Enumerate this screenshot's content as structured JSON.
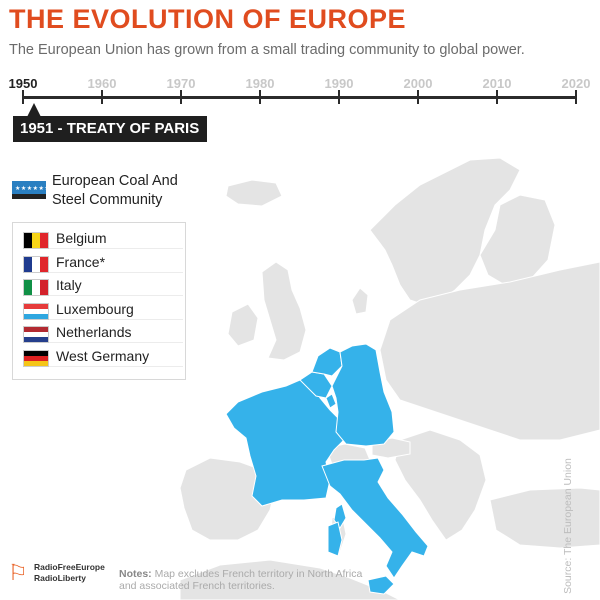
{
  "header": {
    "title": "THE EVOLUTION OF EUROPE",
    "title_color": "#e04c1f",
    "subtitle": "The European Union has grown from a small trading community to global power."
  },
  "timeline": {
    "labels": [
      "1950",
      "1960",
      "1970",
      "1980",
      "1990",
      "2000",
      "2010",
      "2020"
    ],
    "active": "1950",
    "event_year": "1951",
    "event_text": "1951 - TREATY OF PARIS"
  },
  "legend": {
    "group": "European Coal And Steel Community",
    "group_line1": "European Coal And",
    "group_line2": "Steel Community",
    "members": [
      {
        "name": "Belgium",
        "flag": [
          "#000000",
          "#f7d417",
          "#e0262b"
        ],
        "dir": "v"
      },
      {
        "name": "France*",
        "flag": [
          "#1f3b8f",
          "#ffffff",
          "#e0262b"
        ],
        "dir": "v"
      },
      {
        "name": "Italy",
        "flag": [
          "#109046",
          "#ffffff",
          "#d3222b"
        ],
        "dir": "v"
      },
      {
        "name": "Luxembourg",
        "flag": [
          "#e63b3b",
          "#ffffff",
          "#2fa7e0"
        ],
        "dir": "h"
      },
      {
        "name": "Netherlands",
        "flag": [
          "#b22a32",
          "#ffffff",
          "#253f8c"
        ],
        "dir": "h"
      },
      {
        "name": "West Germany",
        "flag": [
          "#000000",
          "#dd2020",
          "#f5c518"
        ],
        "dir": "h"
      }
    ]
  },
  "map": {
    "highlight_color": "#35b2ea",
    "land_color": "#e4e4e4",
    "border_color": "#ffffff"
  },
  "footer": {
    "logo_line1": "RadioFreeEurope",
    "logo_line2": "RadioLiberty",
    "notes_label": "Notes:",
    "notes_text": "Map excludes French territory in North Africa and associated French territories.",
    "notes_line1": "Map excludes French territory in North Africa",
    "notes_line2": "and associated French territories.",
    "source": "Source: The European Union"
  }
}
